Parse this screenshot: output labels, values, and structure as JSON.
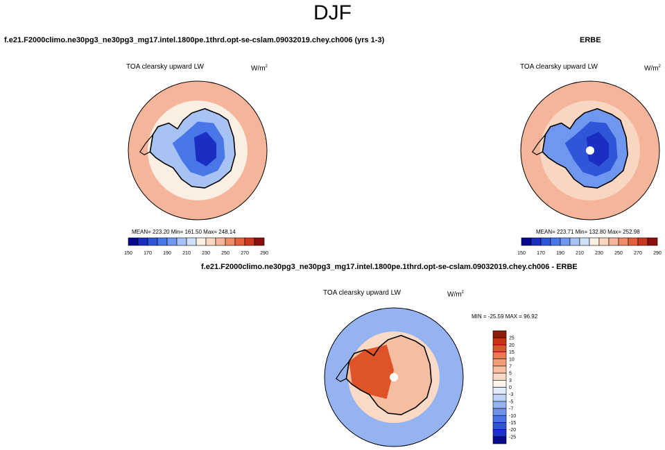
{
  "page": {
    "title": "DJF",
    "case_title": "f.e21.F2000climo.ne30pg3_ne30pg3_mg17.intel.1800pe.1thrd.opt-se-cslam.09032019.chey.ch006 (yrs 1-3)",
    "obs_title": "ERBE",
    "diff_title": "f.e21.F2000climo.ne30pg3_ne30pg3_mg17.intel.1800pe.1thrd.opt-se-cslam.09032019.chey.ch006 - ERBE"
  },
  "colors": {
    "abs_levels": [
      "#08088e",
      "#1a2fc2",
      "#2f55d8",
      "#4a77e8",
      "#6f97ef",
      "#a6c3f4",
      "#cfe0f7",
      "#fbeee2",
      "#f9d6c2",
      "#f5b59a",
      "#ef8c68",
      "#e4603c",
      "#c8371f",
      "#8a0f0f"
    ],
    "diff_levels": [
      "#0a0a8c",
      "#1c33c8",
      "#2e55dc",
      "#4a74e6",
      "#6e92ec",
      "#96b3f1",
      "#bed2f6",
      "#e2ebf9",
      "#fdf3ea",
      "#f9dac6",
      "#f6bea1",
      "#f19e77",
      "#ea7b4e",
      "#de5327",
      "#c63414",
      "#8e1a0c"
    ],
    "land_outline": "#000000",
    "pole_gap": "#ffffff"
  },
  "chart_data": [
    {
      "type": "heatmap",
      "projection": "south-polar-stereographic",
      "title": "TOA clearsky upward LW",
      "units": "W/m",
      "units_superscript": "2",
      "stats": {
        "mean": "223.20",
        "min": "161.50",
        "max": "248.14"
      },
      "stats_text": "MEAN= 223.20   Min= 161.50   Max= 248.14",
      "levels": [
        150,
        160,
        170,
        180,
        190,
        200,
        210,
        220,
        230,
        240,
        250,
        260,
        270,
        280,
        290
      ],
      "tick_labels": [
        "150",
        "170",
        "190",
        "210",
        "230",
        "250",
        "270",
        "290"
      ],
      "fields": {
        "ocean": 240,
        "coastal_ring": 225,
        "antarctic_edge": 205,
        "antarctic_interior": 165
      }
    },
    {
      "type": "heatmap",
      "projection": "south-polar-stereographic",
      "title": "TOA clearsky upward LW",
      "units": "W/m",
      "units_superscript": "2",
      "stats": {
        "mean": "223.71",
        "min": "132.80",
        "max": "252.98"
      },
      "stats_text": "MEAN= 223.71   Min= 132.80   Max= 252.98",
      "levels": [
        150,
        160,
        170,
        180,
        190,
        200,
        210,
        220,
        230,
        240,
        250,
        260,
        270,
        280,
        290
      ],
      "tick_labels": [
        "150",
        "170",
        "190",
        "210",
        "230",
        "250",
        "270",
        "290"
      ],
      "fields": {
        "ocean": 245,
        "coastal_ring": 235,
        "antarctic_edge": 195,
        "antarctic_interior": 160
      }
    },
    {
      "type": "heatmap",
      "projection": "south-polar-stereographic",
      "title": "TOA clearsky upward LW",
      "units": "W/m",
      "units_superscript": "2",
      "stats_text": "MIN = -25.59 MAX =  96.92",
      "stats": {
        "min": "-25.59",
        "max": "96.92"
      },
      "levels": [
        -30,
        -25,
        -20,
        -15,
        -10,
        -7,
        -5,
        -3,
        0,
        3,
        5,
        7,
        10,
        15,
        20,
        25,
        30
      ],
      "tick_labels": [
        "25",
        "20",
        "15",
        "10",
        "7",
        "5",
        "3",
        "0",
        "-3",
        "-5",
        "-7",
        "-10",
        "-15",
        "-20",
        "-25"
      ],
      "fields": {
        "ocean": -6,
        "coastal": 3,
        "west_antarctica": 15,
        "east_antarctica": 5
      }
    }
  ]
}
